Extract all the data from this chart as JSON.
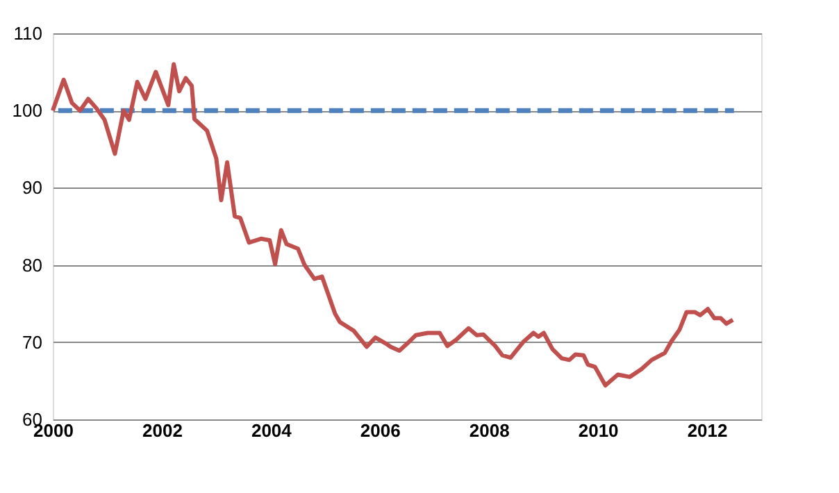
{
  "chart_data": {
    "type": "line",
    "xlim": [
      2000,
      2013
    ],
    "xticks": [
      2000,
      2002,
      2004,
      2006,
      2008,
      2010,
      2012
    ],
    "ylim": [
      60,
      110
    ],
    "yticks": [
      60,
      70,
      80,
      90,
      100,
      110
    ],
    "grid": "y",
    "marker": "none",
    "series": [
      {
        "color": "#4f81bd",
        "line_style": "dashed",
        "x": [
          2000.1,
          2012.5
        ],
        "values": [
          100,
          100
        ]
      },
      {
        "color": "#c0504d",
        "line_style": "solid",
        "x": [
          2000.0,
          2000.2,
          2000.35,
          2000.5,
          2000.65,
          2000.8,
          2000.95,
          2001.14,
          2001.3,
          2001.4,
          2001.55,
          2001.7,
          2001.89,
          2002.12,
          2002.22,
          2002.32,
          2002.44,
          2002.55,
          2002.6,
          2002.83,
          2003.0,
          2003.09,
          2003.2,
          2003.34,
          2003.44,
          2003.6,
          2003.82,
          2003.98,
          2004.08,
          2004.19,
          2004.29,
          2004.5,
          2004.62,
          2004.8,
          2004.94,
          2005.18,
          2005.27,
          2005.52,
          2005.76,
          2005.92,
          2006.12,
          2006.2,
          2006.36,
          2006.5,
          2006.66,
          2006.88,
          2007.1,
          2007.24,
          2007.4,
          2007.63,
          2007.78,
          2007.9,
          2008.12,
          2008.25,
          2008.4,
          2008.63,
          2008.82,
          2008.91,
          2009.01,
          2009.17,
          2009.34,
          2009.48,
          2009.59,
          2009.74,
          2009.82,
          2009.95,
          2010.14,
          2010.37,
          2010.59,
          2010.8,
          2010.99,
          2011.23,
          2011.35,
          2011.5,
          2011.63,
          2011.78,
          2011.88,
          2012.02,
          2012.14,
          2012.26,
          2012.36,
          2012.48
        ],
        "values": [
          100,
          104,
          101,
          100,
          101.5,
          100.3,
          98.8,
          94.4,
          100,
          98.8,
          103.7,
          101.5,
          105,
          100.7,
          106,
          102.5,
          104.2,
          103.2,
          98.9,
          97.4,
          93.8,
          88.4,
          93.3,
          86.3,
          86.1,
          82.9,
          83.4,
          83.2,
          80.1,
          84.5,
          82.7,
          82.1,
          80,
          78.2,
          78.5,
          73.7,
          72.6,
          71.5,
          69.4,
          70.6,
          69.8,
          69.4,
          68.9,
          69.8,
          70.9,
          71.2,
          71.2,
          69.5,
          70.3,
          71.8,
          70.9,
          71,
          69.5,
          68.3,
          68,
          70,
          71.2,
          70.7,
          71.2,
          69.1,
          67.9,
          67.7,
          68.4,
          68.3,
          67.1,
          66.8,
          64.4,
          65.8,
          65.5,
          66.5,
          67.7,
          68.6,
          70.1,
          71.6,
          73.9,
          73.9,
          73.5,
          74.3,
          73.1,
          73.1,
          72.4,
          72.9
        ]
      }
    ]
  }
}
